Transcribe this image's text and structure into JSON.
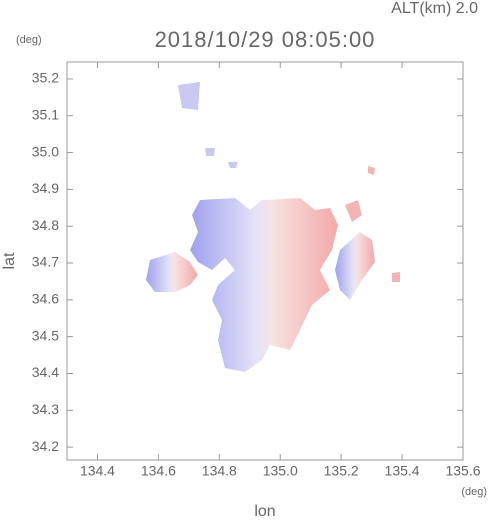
{
  "chart_data": {
    "type": "map",
    "title": "2018/10/29 08:05:00",
    "subtitle": "ALT(km) 2.0",
    "xlabel": "lon",
    "ylabel": "lat",
    "xlabel_unit": "(deg)",
    "ylabel_unit": "(deg)",
    "xlim": [
      134.3,
      135.6
    ],
    "ylim": [
      34.165,
      35.246
    ],
    "xticks": [
      134.4,
      134.6,
      134.8,
      {
        "value": 135,
        "label": "135.0"
      },
      135.2,
      135.4,
      135.6
    ],
    "yticks": [
      34.2,
      34.3,
      34.4,
      34.5,
      34.6,
      34.7,
      34.8,
      34.9,
      {
        "value": 35,
        "label": "35.0"
      },
      35.1,
      35.2
    ],
    "frame_color": "#999999"
  }
}
